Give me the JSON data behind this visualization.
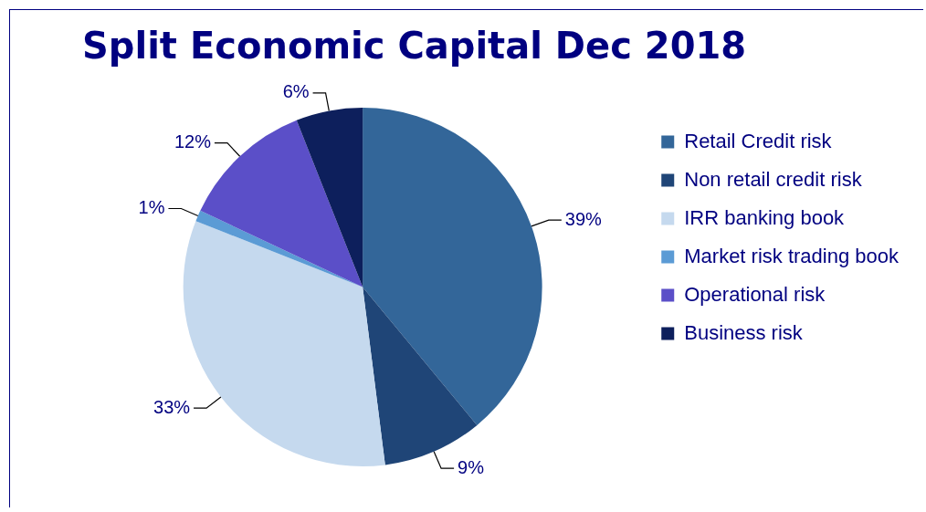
{
  "chart_data": {
    "type": "pie",
    "title": "Split Economic Capital Dec 2018",
    "categories": [
      "Retail Credit risk",
      "Non retail credit risk",
      "IRR banking book",
      "Market risk trading book",
      "Operational risk",
      "Business risk"
    ],
    "values": [
      39,
      9,
      33,
      1,
      12,
      6
    ],
    "colors": [
      "#336699",
      "#1f4577",
      "#c5d9ee",
      "#5b9bd5",
      "#5b4fc8",
      "#0d1f5c"
    ],
    "value_labels": [
      "39%",
      "9%",
      "33%",
      "1%",
      "12%",
      "6%"
    ],
    "legend": "right"
  }
}
